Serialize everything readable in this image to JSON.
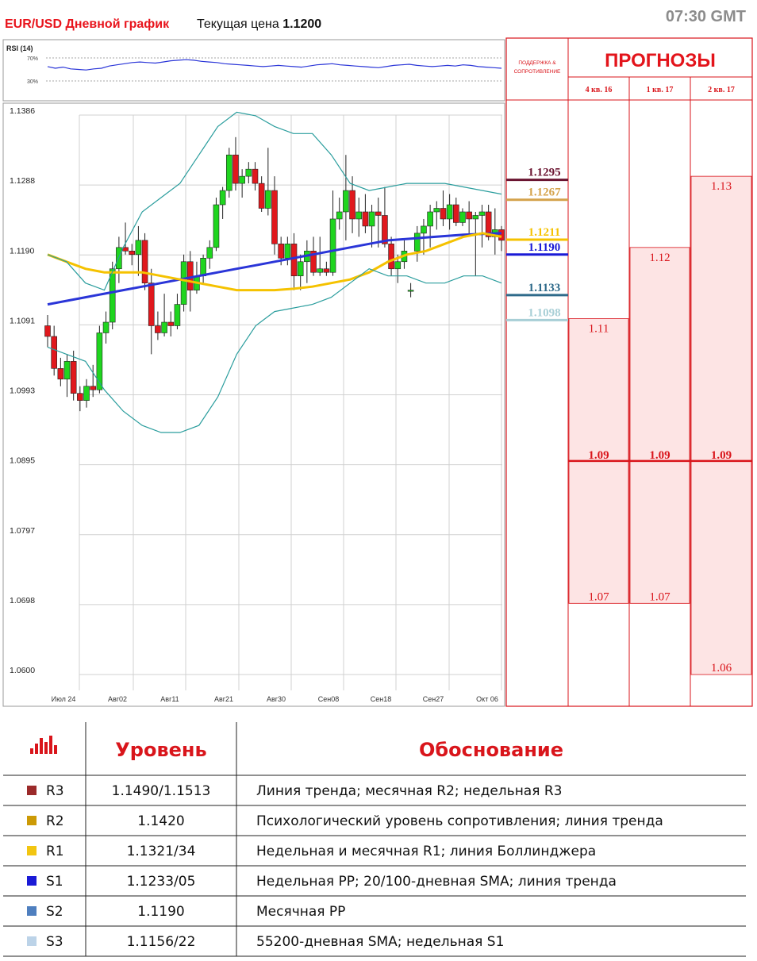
{
  "header": {
    "title": "EUR/USD Дневной график",
    "current_price_label": "Текущая цена",
    "current_price_value": "1.1200",
    "time": "07:30 GMT"
  },
  "rsi": {
    "label": "RSI (14)",
    "upper_label": "70%",
    "lower_label": "30%",
    "values": [
      55,
      52,
      54,
      51,
      50,
      49,
      51,
      52,
      56,
      58,
      60,
      62,
      63,
      62,
      61,
      63,
      65,
      66,
      67,
      66,
      64,
      63,
      62,
      60,
      59,
      58,
      57,
      56,
      55,
      56,
      57,
      56,
      55,
      54,
      56,
      58,
      59,
      60,
      58,
      57,
      56,
      55,
      54,
      53,
      55,
      57,
      58,
      59,
      57,
      56,
      55,
      56,
      57,
      56,
      58,
      57,
      55,
      54,
      53,
      52
    ]
  },
  "chart_data": {
    "type": "candlestick",
    "title": "EUR/USD Дневной график",
    "y_ticks": [
      "1.1386",
      "1.1288",
      "1.1190",
      "1.1091",
      "1.0993",
      "1.0895",
      "1.0797",
      "1.0698",
      "1.0600"
    ],
    "ylim": [
      1.06,
      1.1386
    ],
    "x_ticks": [
      "Июл 24",
      "Авг02",
      "Авг11",
      "Авг21",
      "Авг30",
      "Сен08",
      "Сен18",
      "Сен27",
      "Окт 06"
    ],
    "candles": [
      [
        1.109,
        1.1105,
        1.106,
        1.1075
      ],
      [
        1.1075,
        1.109,
        1.102,
        1.103
      ],
      [
        1.103,
        1.1045,
        1.1005,
        1.1015
      ],
      [
        1.1015,
        1.105,
        1.099,
        1.104
      ],
      [
        1.104,
        1.1055,
        1.0985,
        1.0995
      ],
      [
        1.0995,
        1.1005,
        1.097,
        1.0985
      ],
      [
        1.0985,
        1.1015,
        1.0975,
        1.1005
      ],
      [
        1.1005,
        1.1035,
        1.099,
        1.1
      ],
      [
        1.1,
        1.109,
        1.0995,
        1.108
      ],
      [
        1.108,
        1.111,
        1.1065,
        1.1095
      ],
      [
        1.1095,
        1.118,
        1.1085,
        1.117
      ],
      [
        1.117,
        1.1215,
        1.115,
        1.12
      ],
      [
        1.12,
        1.1235,
        1.119,
        1.1195
      ],
      [
        1.1195,
        1.1205,
        1.1175,
        1.119
      ],
      [
        1.119,
        1.123,
        1.116,
        1.121
      ],
      [
        1.121,
        1.122,
        1.114,
        1.115
      ],
      [
        1.115,
        1.117,
        1.105,
        1.109
      ],
      [
        1.109,
        1.111,
        1.107,
        1.108
      ],
      [
        1.108,
        1.1135,
        1.1075,
        1.1095
      ],
      [
        1.1095,
        1.111,
        1.1075,
        1.109
      ],
      [
        1.109,
        1.1135,
        1.1085,
        1.112
      ],
      [
        1.112,
        1.119,
        1.111,
        1.118
      ],
      [
        1.118,
        1.1195,
        1.111,
        1.114
      ],
      [
        1.114,
        1.118,
        1.1135,
        1.116
      ],
      [
        1.116,
        1.119,
        1.115,
        1.1185
      ],
      [
        1.1185,
        1.121,
        1.117,
        1.12
      ],
      [
        1.12,
        1.127,
        1.1195,
        1.126
      ],
      [
        1.126,
        1.1285,
        1.124,
        1.128
      ],
      [
        1.128,
        1.134,
        1.127,
        1.133
      ],
      [
        1.133,
        1.1355,
        1.128,
        1.129
      ],
      [
        1.129,
        1.131,
        1.127,
        1.13
      ],
      [
        1.13,
        1.132,
        1.129,
        1.131
      ],
      [
        1.131,
        1.132,
        1.128,
        1.129
      ],
      [
        1.129,
        1.13,
        1.125,
        1.1255
      ],
      [
        1.1255,
        1.134,
        1.1245,
        1.128
      ],
      [
        1.128,
        1.13,
        1.119,
        1.1205
      ],
      [
        1.1205,
        1.1215,
        1.1175,
        1.1185
      ],
      [
        1.1185,
        1.1215,
        1.1175,
        1.1205
      ],
      [
        1.1205,
        1.122,
        1.114,
        1.116
      ],
      [
        1.116,
        1.119,
        1.114,
        1.118
      ],
      [
        1.118,
        1.121,
        1.115,
        1.1195
      ],
      [
        1.1195,
        1.1215,
        1.116,
        1.1165
      ],
      [
        1.1165,
        1.1215,
        1.116,
        1.117
      ],
      [
        1.117,
        1.118,
        1.116,
        1.1165
      ],
      [
        1.1165,
        1.128,
        1.116,
        1.124
      ],
      [
        1.124,
        1.127,
        1.1225,
        1.125
      ],
      [
        1.125,
        1.133,
        1.121,
        1.128
      ],
      [
        1.128,
        1.13,
        1.122,
        1.124
      ],
      [
        1.124,
        1.127,
        1.1215,
        1.125
      ],
      [
        1.125,
        1.1275,
        1.122,
        1.123
      ],
      [
        1.123,
        1.126,
        1.12,
        1.125
      ],
      [
        1.125,
        1.127,
        1.12,
        1.1245
      ],
      [
        1.1245,
        1.1285,
        1.12,
        1.1205
      ],
      [
        1.1205,
        1.1215,
        1.116,
        1.117
      ],
      [
        1.117,
        1.119,
        1.115,
        1.118
      ],
      [
        1.118,
        1.121,
        1.117,
        1.1195
      ],
      [
        1.114,
        1.115,
        1.113,
        1.114
      ],
      [
        1.1195,
        1.123,
        1.118,
        1.122
      ],
      [
        1.122,
        1.124,
        1.119,
        1.123
      ],
      [
        1.123,
        1.126,
        1.12,
        1.125
      ],
      [
        1.125,
        1.1265,
        1.1225,
        1.1255
      ],
      [
        1.1255,
        1.128,
        1.123,
        1.124
      ],
      [
        1.124,
        1.1275,
        1.1225,
        1.126
      ],
      [
        1.126,
        1.127,
        1.123,
        1.1235
      ],
      [
        1.1235,
        1.1255,
        1.123,
        1.125
      ],
      [
        1.125,
        1.1265,
        1.1215,
        1.124
      ],
      [
        1.124,
        1.125,
        1.116,
        1.1245
      ],
      [
        1.1245,
        1.126,
        1.12,
        1.125
      ],
      [
        1.125,
        1.126,
        1.121,
        1.1215
      ],
      [
        1.1215,
        1.1255,
        1.119,
        1.1225
      ],
      [
        1.1225,
        1.123,
        1.1195,
        1.121
      ]
    ],
    "series": [
      {
        "color": "#2a35d8",
        "values": [
          1.112,
          1.1125,
          1.113,
          1.1135,
          1.114,
          1.1145,
          1.115,
          1.1155,
          1.116,
          1.1165,
          1.117,
          1.1175,
          1.118,
          1.1185,
          1.119,
          1.1195,
          1.12,
          1.1205,
          1.121,
          1.1212,
          1.1214,
          1.1216,
          1.1218,
          1.1219,
          1.122
        ]
      },
      {
        "color": "#f5c200",
        "values": [
          1.119,
          1.118,
          1.117,
          1.1165,
          1.1165,
          1.1165,
          1.116,
          1.1155,
          1.115,
          1.1145,
          1.114,
          1.114,
          1.114,
          1.1142,
          1.1145,
          1.115,
          1.1155,
          1.1165,
          1.118,
          1.119,
          1.1195,
          1.1205,
          1.1215,
          1.122,
          1.1215
        ]
      },
      {
        "color": "#2a9d9d",
        "values": [
          1.106,
          1.105,
          1.104,
          1.1,
          1.097,
          1.095,
          1.094,
          1.094,
          1.095,
          1.099,
          1.105,
          1.109,
          1.111,
          1.1115,
          1.112,
          1.113,
          1.115,
          1.117,
          1.116,
          1.116,
          1.115,
          1.115,
          1.116,
          1.116,
          1.115
        ]
      },
      {
        "color": "#2a9d9d",
        "values": [
          1.119,
          1.118,
          1.115,
          1.114,
          1.12,
          1.125,
          1.127,
          1.129,
          1.133,
          1.137,
          1.139,
          1.1385,
          1.137,
          1.136,
          1.136,
          1.133,
          1.129,
          1.128,
          1.1285,
          1.129,
          1.129,
          1.129,
          1.1285,
          1.128,
          1.1275
        ]
      }
    ],
    "levels": [
      {
        "label": "1.1295",
        "value": 1.1295,
        "color": "#6a1430"
      },
      {
        "label": "1.1267",
        "value": 1.1267,
        "color": "#d4a24a"
      },
      {
        "label": "1.1211",
        "value": 1.1211,
        "color": "#f5c200"
      },
      {
        "label": "1.1190",
        "value": 1.119,
        "color": "#1a1ad6"
      },
      {
        "label": "1.1133",
        "value": 1.1133,
        "color": "#2e6a8a"
      },
      {
        "label": "1.1098",
        "value": 1.1098,
        "color": "#a8cfd6"
      }
    ]
  },
  "forecast": {
    "title": "ПРОГНОЗЫ",
    "sr_label": "ПОДДЕРЖКА & СОПРОТИВЛЕНИЕ",
    "columns": [
      {
        "label": "4 кв. 16",
        "high": "1.11",
        "mid": "1.09",
        "low": "1.07"
      },
      {
        "label": "1 кв. 17",
        "high": "1.12",
        "mid": "1.09",
        "low": "1.07"
      },
      {
        "label": "2 кв. 17",
        "high": "1.13",
        "mid": "1.09",
        "low": "1.06"
      }
    ]
  },
  "table": {
    "icon": "bar-chart-icon",
    "col_level": "Уровень",
    "col_reason": "Обоснование",
    "rows": [
      {
        "name": "R3",
        "color": "#9b2a2a",
        "level": "1.1490/1.1513",
        "reason": "Линия тренда; месячная R2; недельная R3"
      },
      {
        "name": "R2",
        "color": "#cc9a06",
        "level": "1.1420",
        "reason": "Психологический уровень сопротивления; линия тренда"
      },
      {
        "name": "R1",
        "color": "#f2c511",
        "level": "1.1321/34",
        "reason": "Недельная и месячная R1; линия Боллинджера"
      },
      {
        "name": "S1",
        "color": "#1a1ad6",
        "level": "1.1233/05",
        "reason": "Недельная PP; 20/100-дневная SMA; линия тренда"
      },
      {
        "name": "S2",
        "color": "#4f7fbf",
        "level": "1.1190",
        "reason": "Месячная PP"
      },
      {
        "name": "S3",
        "color": "#bcd3e8",
        "level": "1.1156/22",
        "reason": "55200-дневная SMA; недельная S1"
      }
    ]
  }
}
